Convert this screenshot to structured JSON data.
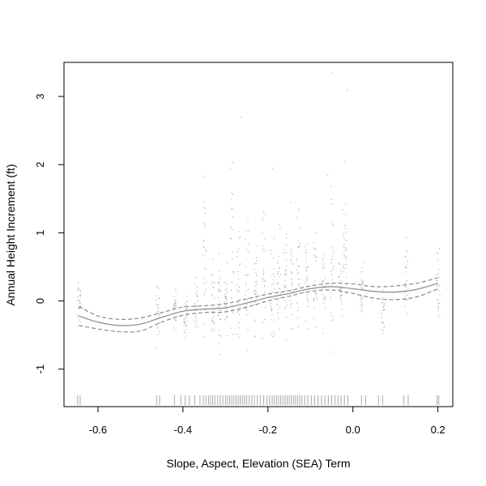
{
  "chart_data": {
    "type": "scatter",
    "title": "",
    "xlabel": "Slope, Aspect, Elevation (SEA) Term",
    "ylabel": "Annual Height Increment (ft)",
    "xlim": [
      -0.68,
      0.235
    ],
    "ylim": [
      -1.55,
      3.5
    ],
    "x_ticks": [
      -0.6,
      -0.4,
      -0.2,
      0.0,
      0.2
    ],
    "x_tick_labels": [
      "-0.6",
      "-0.4",
      "-0.2",
      "0.0",
      "0.2"
    ],
    "y_ticks": [
      -1,
      0,
      1,
      2,
      3
    ],
    "y_tick_labels": [
      "-1",
      "0",
      "1",
      "2",
      "3"
    ],
    "grid": false,
    "colors": {
      "points": "#9a9a9a",
      "lines": "#8a8a8a",
      "rug": "#aaaaaa",
      "axes": "#000000"
    },
    "series": [
      {
        "kind": "smooth-fit",
        "style": "solid",
        "x": [
          -0.645,
          -0.6,
          -0.55,
          -0.5,
          -0.45,
          -0.4,
          -0.35,
          -0.3,
          -0.25,
          -0.2,
          -0.15,
          -0.1,
          -0.05,
          0.0,
          0.05,
          0.1,
          0.15,
          0.2
        ],
        "y": [
          -0.22,
          -0.31,
          -0.36,
          -0.34,
          -0.24,
          -0.15,
          -0.12,
          -0.1,
          -0.03,
          0.05,
          0.11,
          0.18,
          0.21,
          0.18,
          0.14,
          0.13,
          0.17,
          0.26
        ]
      },
      {
        "kind": "upper-band",
        "style": "dashed",
        "x": [
          -0.645,
          -0.6,
          -0.55,
          -0.5,
          -0.45,
          -0.4,
          -0.35,
          -0.3,
          -0.25,
          -0.2,
          -0.15,
          -0.1,
          -0.05,
          0.0,
          0.05,
          0.1,
          0.15,
          0.2
        ],
        "y": [
          -0.08,
          -0.22,
          -0.27,
          -0.25,
          -0.17,
          -0.09,
          -0.07,
          -0.04,
          0.03,
          0.1,
          0.15,
          0.22,
          0.26,
          0.25,
          0.21,
          0.22,
          0.26,
          0.34
        ]
      },
      {
        "kind": "lower-band",
        "style": "dashed",
        "x": [
          -0.645,
          -0.6,
          -0.55,
          -0.5,
          -0.45,
          -0.4,
          -0.35,
          -0.3,
          -0.25,
          -0.2,
          -0.15,
          -0.1,
          -0.05,
          0.0,
          0.05,
          0.1,
          0.15,
          0.2
        ],
        "y": [
          -0.36,
          -0.41,
          -0.45,
          -0.44,
          -0.31,
          -0.21,
          -0.17,
          -0.16,
          -0.09,
          0.0,
          0.07,
          0.14,
          0.16,
          0.11,
          0.04,
          0.02,
          0.06,
          0.18
        ]
      }
    ],
    "scatter_columns": [
      {
        "x": -0.645,
        "ymin": -0.58,
        "ymax": 0.5
      },
      {
        "x": -0.46,
        "ymin": -0.85,
        "ymax": 0.62
      },
      {
        "x": -0.42,
        "ymin": -0.55,
        "ymax": 0.25
      },
      {
        "x": -0.395,
        "ymin": -0.65,
        "ymax": 0.3
      },
      {
        "x": -0.37,
        "ymin": -0.55,
        "ymax": 0.45
      },
      {
        "x": -0.35,
        "ymin": -0.9,
        "ymax": 1.95
      },
      {
        "x": -0.33,
        "ymin": -0.75,
        "ymax": 0.7
      },
      {
        "x": -0.315,
        "ymin": -0.8,
        "ymax": 0.9
      },
      {
        "x": -0.3,
        "ymin": -0.65,
        "ymax": 0.6
      },
      {
        "x": -0.285,
        "ymin": -0.95,
        "ymax": 2.25
      },
      {
        "x": -0.27,
        "ymin": -0.95,
        "ymax": 1.1
      },
      {
        "x": -0.25,
        "ymin": -0.8,
        "ymax": 1.4
      },
      {
        "x": -0.23,
        "ymin": -0.7,
        "ymax": 0.9
      },
      {
        "x": -0.21,
        "ymin": -1.05,
        "ymax": 2.1
      },
      {
        "x": -0.19,
        "ymin": -0.85,
        "ymax": 1.25
      },
      {
        "x": -0.175,
        "ymin": -0.8,
        "ymax": 1.2
      },
      {
        "x": -0.16,
        "ymin": -0.6,
        "ymax": 1.3
      },
      {
        "x": -0.145,
        "ymin": -0.75,
        "ymax": 1.5
      },
      {
        "x": -0.13,
        "ymin": -0.6,
        "ymax": 1.75
      },
      {
        "x": -0.11,
        "ymin": -0.55,
        "ymax": 1.25
      },
      {
        "x": -0.09,
        "ymin": -0.8,
        "ymax": 1.3
      },
      {
        "x": -0.07,
        "ymin": -0.6,
        "ymax": 0.9
      },
      {
        "x": -0.05,
        "ymin": -1.0,
        "ymax": 1.75
      },
      {
        "x": -0.03,
        "ymin": -0.3,
        "ymax": 0.7
      },
      {
        "x": -0.02,
        "ymin": -0.5,
        "ymax": 1.6
      },
      {
        "x": 0.02,
        "ymin": -0.4,
        "ymax": 0.75
      },
      {
        "x": 0.07,
        "ymin": -0.65,
        "ymax": 0.35
      },
      {
        "x": 0.125,
        "ymin": -0.3,
        "ymax": 1.0
      },
      {
        "x": 0.2,
        "ymin": -0.4,
        "ymax": 0.92
      }
    ],
    "outlier_points": [
      {
        "x": -0.05,
        "y": 3.35
      },
      {
        "x": -0.015,
        "y": 3.1
      },
      {
        "x": -0.265,
        "y": 2.7
      },
      {
        "x": -0.02,
        "y": 2.05
      },
      {
        "x": -0.19,
        "y": 1.95
      },
      {
        "x": -0.06,
        "y": 1.85
      }
    ],
    "rug_x": [
      -0.648,
      -0.642,
      -0.462,
      -0.455,
      -0.42,
      -0.405,
      -0.395,
      -0.385,
      -0.372,
      -0.36,
      -0.352,
      -0.346,
      -0.34,
      -0.335,
      -0.33,
      -0.325,
      -0.318,
      -0.312,
      -0.306,
      -0.3,
      -0.295,
      -0.29,
      -0.285,
      -0.28,
      -0.275,
      -0.27,
      -0.265,
      -0.26,
      -0.255,
      -0.25,
      -0.244,
      -0.238,
      -0.232,
      -0.225,
      -0.218,
      -0.21,
      -0.202,
      -0.196,
      -0.19,
      -0.185,
      -0.18,
      -0.175,
      -0.17,
      -0.165,
      -0.16,
      -0.155,
      -0.15,
      -0.145,
      -0.14,
      -0.135,
      -0.13,
      -0.125,
      -0.12,
      -0.113,
      -0.106,
      -0.098,
      -0.09,
      -0.082,
      -0.074,
      -0.066,
      -0.058,
      -0.05,
      -0.042,
      -0.035,
      -0.028,
      -0.02,
      -0.012,
      0.02,
      0.03,
      0.06,
      0.07,
      0.12,
      0.13,
      0.198,
      0.202
    ]
  }
}
